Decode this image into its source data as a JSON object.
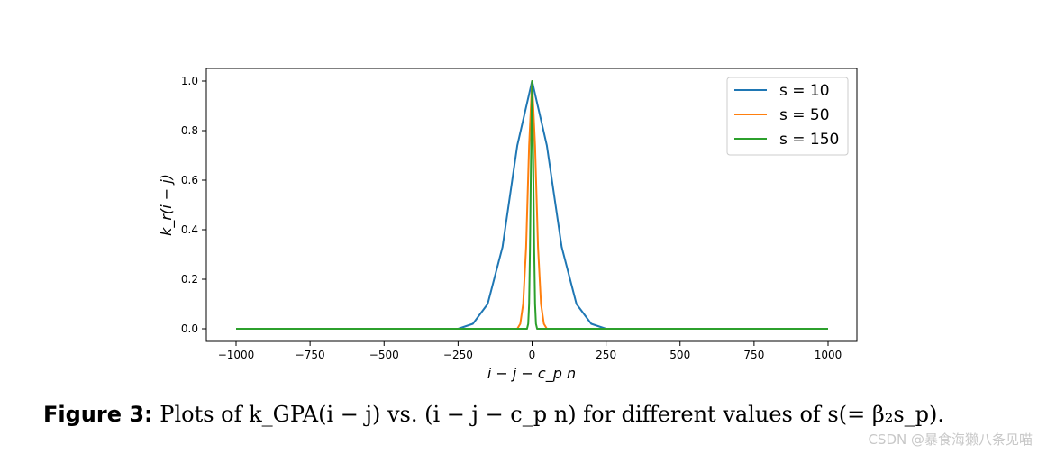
{
  "chart_data": {
    "type": "line",
    "xlabel": "i − j − c_p n",
    "ylabel": "k_r(i − j)",
    "xlim": [
      -1000,
      1000
    ],
    "ylim": [
      0.0,
      1.0
    ],
    "xticks": [
      -1000,
      -750,
      -500,
      -250,
      0,
      250,
      500,
      750,
      1000
    ],
    "xtick_labels": [
      "−1000",
      "−750",
      "−500",
      "−250",
      "0",
      "250",
      "500",
      "750",
      "1000"
    ],
    "yticks": [
      0.0,
      0.2,
      0.4,
      0.6,
      0.8,
      1.0
    ],
    "ytick_labels": [
      "0.0",
      "0.2",
      "0.4",
      "0.6",
      "0.8",
      "1.0"
    ],
    "grid": false,
    "legend_position": "top-right",
    "series": [
      {
        "name": "s = 10",
        "color": "#1f77b4",
        "x": [
          -1000,
          -250,
          -200,
          -150,
          -100,
          -50,
          0,
          50,
          100,
          150,
          200,
          250,
          1000
        ],
        "y": [
          0.0,
          0.0,
          0.02,
          0.1,
          0.33,
          0.74,
          1.0,
          0.74,
          0.33,
          0.1,
          0.02,
          0.0,
          0.0
        ]
      },
      {
        "name": "s = 50",
        "color": "#ff7f0e",
        "x": [
          -1000,
          -50,
          -40,
          -30,
          -20,
          -10,
          0,
          10,
          20,
          30,
          40,
          50,
          1000
        ],
        "y": [
          0.0,
          0.0,
          0.02,
          0.1,
          0.33,
          0.74,
          1.0,
          0.74,
          0.33,
          0.1,
          0.02,
          0.0,
          0.0
        ]
      },
      {
        "name": "s = 150",
        "color": "#2ca02c",
        "x": [
          -1000,
          -17,
          -13,
          -10,
          -7,
          -3,
          0,
          3,
          7,
          10,
          13,
          17,
          1000
        ],
        "y": [
          0.0,
          0.0,
          0.02,
          0.1,
          0.33,
          0.74,
          1.0,
          0.74,
          0.33,
          0.1,
          0.02,
          0.0,
          0.0
        ]
      }
    ]
  },
  "caption": {
    "label": "Figure 3:",
    "text": "Plots of k_GPA(i − j) vs. (i − j − c_p n) for different values of s(= β₂s_p)."
  },
  "watermark": "CSDN @暴食海獭八条见喵"
}
